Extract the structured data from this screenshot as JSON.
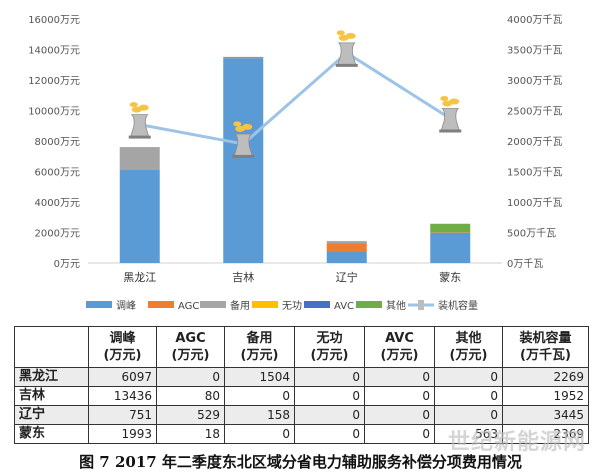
{
  "chart_data": {
    "type": "bar",
    "stacked": true,
    "categories": [
      "黑龙江",
      "吉林",
      "辽宁",
      "蒙东"
    ],
    "series": [
      {
        "name": "调峰",
        "color": "#5b9bd5",
        "values": [
          6097,
          13436,
          751,
          1993
        ]
      },
      {
        "name": "AGC",
        "color": "#ed7d31",
        "values": [
          0,
          80,
          529,
          18
        ]
      },
      {
        "name": "备用",
        "color": "#a5a5a5",
        "values": [
          1504,
          0,
          158,
          0
        ]
      },
      {
        "name": "无功",
        "color": "#ffc000",
        "values": [
          0,
          0,
          0,
          0
        ]
      },
      {
        "name": "AVC",
        "color": "#4472c4",
        "values": [
          0,
          0,
          0,
          0
        ]
      },
      {
        "name": "其他",
        "color": "#70ad47",
        "values": [
          0,
          0,
          0,
          563
        ]
      }
    ],
    "line_series": {
      "name": "装机容量",
      "color": "#9dc3e6",
      "values": [
        2269,
        1952,
        3445,
        2369
      ],
      "axis": "right"
    },
    "left_axis": {
      "ylim": [
        0,
        16000
      ],
      "ticks": [
        "0万元",
        "2000万元",
        "4000万元",
        "6000万元",
        "8000万元",
        "10000万元",
        "12000万元",
        "14000万元",
        "16000万元"
      ]
    },
    "right_axis": {
      "ylim": [
        0,
        4000
      ],
      "ticks": [
        "0万千瓦",
        "500万千瓦",
        "1000万千瓦",
        "1500万千瓦",
        "2000万千瓦",
        "2500万千瓦",
        "3000万千瓦",
        "3500万千瓦",
        "4000万千瓦"
      ]
    },
    "legend_position": "bottom",
    "gridlines": false
  },
  "table": {
    "headers": [
      "",
      "调峰\n(万元)",
      "AGC\n(万元)",
      "备用\n(万元)",
      "无功\n(万元)",
      "AVC\n(万元)",
      "其他\n(万元)",
      "装机容量\n(万千瓦)"
    ],
    "rows": [
      {
        "region": "黑龙江",
        "cells": [
          "6097",
          "0",
          "1504",
          "0",
          "0",
          "0",
          "2269"
        ]
      },
      {
        "region": "吉林",
        "cells": [
          "13436",
          "80",
          "0",
          "0",
          "0",
          "0",
          "1952"
        ]
      },
      {
        "region": "辽宁",
        "cells": [
          "751",
          "529",
          "158",
          "0",
          "0",
          "0",
          "3445"
        ]
      },
      {
        "region": "蒙东",
        "cells": [
          "1993",
          "18",
          "0",
          "0",
          "0",
          "563",
          "2369"
        ]
      }
    ]
  },
  "caption": "图 7   2017 年二季度东北区域分省电力辅助服务补偿分项费用情况",
  "watermark": "世纪新能源网"
}
